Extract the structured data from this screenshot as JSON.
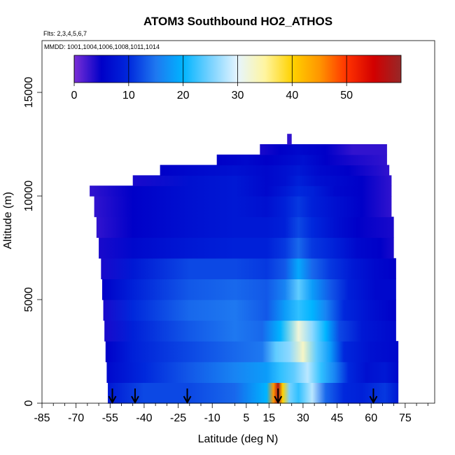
{
  "chart_data": {
    "type": "heatmap",
    "title": "ATOM3 Southbound HO2_ATHOS",
    "subtitle_flights": "Flts: 2,3,4,5,6,7",
    "subtitle_dates": "MMDD: 1001,1004,1006,1008,1011,1014",
    "xlabel": "Latitude (deg N)",
    "ylabel": "Altitude (m)",
    "xlim": [
      -85,
      88
    ],
    "ylim": [
      0,
      17500
    ],
    "x_ticks": [
      -85,
      -70,
      -55,
      -40,
      -25,
      -10,
      5,
      15,
      30,
      45,
      60,
      75
    ],
    "x_minor_ticks": [
      -80,
      -75,
      -65,
      -60,
      -50,
      -45,
      -35,
      -30,
      -20,
      -15,
      0,
      10,
      20,
      25,
      35,
      40,
      50,
      55,
      65,
      70,
      80,
      85
    ],
    "y_ticks": [
      0,
      5000,
      10000,
      15000
    ],
    "colorbar": {
      "min": 0,
      "max": 60,
      "ticks": [
        0,
        10,
        20,
        30,
        40,
        50
      ],
      "colors": [
        "#7b2fd6",
        "#0000c8",
        "#0028dc",
        "#1e78f0",
        "#00b4ff",
        "#78d2ff",
        "#e6f5ff",
        "#fff5a0",
        "#ffd200",
        "#ff9600",
        "#ff3200",
        "#d20000",
        "#962828"
      ]
    },
    "flight_boundary_latitudes": [
      -54,
      -44,
      -21,
      19,
      61
    ],
    "bands": [
      {
        "alt": [
          0,
          1000
        ],
        "lat": [
          -56,
          72
        ],
        "values": [
          [
            -56,
            8
          ],
          [
            -40,
            12
          ],
          [
            -20,
            12
          ],
          [
            0,
            14
          ],
          [
            14,
            20
          ],
          [
            17,
            45
          ],
          [
            19,
            58
          ],
          [
            21,
            40
          ],
          [
            24,
            25
          ],
          [
            28,
            22
          ],
          [
            34,
            28
          ],
          [
            40,
            14
          ],
          [
            48,
            10
          ],
          [
            56,
            9
          ],
          [
            66,
            11
          ],
          [
            72,
            8
          ]
        ]
      },
      {
        "alt": [
          1000,
          2000
        ],
        "lat": [
          -56.5,
          72
        ],
        "values": [
          [
            -56.5,
            6
          ],
          [
            -40,
            10
          ],
          [
            -20,
            13
          ],
          [
            0,
            16
          ],
          [
            14,
            18
          ],
          [
            20,
            22
          ],
          [
            26,
            24
          ],
          [
            32,
            28
          ],
          [
            38,
            22
          ],
          [
            44,
            16
          ],
          [
            50,
            10
          ],
          [
            58,
            7
          ],
          [
            66,
            8
          ],
          [
            72,
            6
          ]
        ]
      },
      {
        "alt": [
          2000,
          3000
        ],
        "lat": [
          -57,
          72
        ],
        "values": [
          [
            -57,
            5
          ],
          [
            -45,
            9
          ],
          [
            -20,
            12
          ],
          [
            0,
            14
          ],
          [
            12,
            15
          ],
          [
            18,
            24
          ],
          [
            24,
            26
          ],
          [
            30,
            33
          ],
          [
            36,
            24
          ],
          [
            42,
            18
          ],
          [
            48,
            10
          ],
          [
            60,
            7
          ],
          [
            72,
            6
          ]
        ]
      },
      {
        "alt": [
          3000,
          4000
        ],
        "lat": [
          -57.5,
          71
        ],
        "values": [
          [
            -57.5,
            4
          ],
          [
            -45,
            9
          ],
          [
            -20,
            13
          ],
          [
            0,
            15
          ],
          [
            12,
            14
          ],
          [
            20,
            20
          ],
          [
            28,
            32
          ],
          [
            34,
            26
          ],
          [
            40,
            20
          ],
          [
            46,
            12
          ],
          [
            56,
            8
          ],
          [
            71,
            6
          ]
        ]
      },
      {
        "alt": [
          4000,
          5000
        ],
        "lat": [
          -58,
          71
        ],
        "values": [
          [
            -58,
            4
          ],
          [
            -45,
            10
          ],
          [
            -20,
            14
          ],
          [
            0,
            15
          ],
          [
            14,
            13
          ],
          [
            22,
            18
          ],
          [
            28,
            22
          ],
          [
            34,
            20
          ],
          [
            40,
            16
          ],
          [
            48,
            10
          ],
          [
            60,
            7
          ],
          [
            71,
            5
          ]
        ]
      },
      {
        "alt": [
          5000,
          6000
        ],
        "lat": [
          -58.5,
          71
        ],
        "values": [
          [
            -58.5,
            5
          ],
          [
            -45,
            9
          ],
          [
            -20,
            13
          ],
          [
            0,
            14
          ],
          [
            14,
            13
          ],
          [
            22,
            16
          ],
          [
            28,
            24
          ],
          [
            34,
            18
          ],
          [
            42,
            13
          ],
          [
            50,
            9
          ],
          [
            62,
            6
          ],
          [
            71,
            6
          ]
        ]
      },
      {
        "alt": [
          6000,
          7000
        ],
        "lat": [
          -59,
          71
        ],
        "values": [
          [
            -59,
            4
          ],
          [
            -45,
            8
          ],
          [
            -20,
            12
          ],
          [
            0,
            12
          ],
          [
            14,
            11
          ],
          [
            22,
            13
          ],
          [
            28,
            19
          ],
          [
            34,
            14
          ],
          [
            42,
            11
          ],
          [
            52,
            8
          ],
          [
            62,
            6
          ],
          [
            71,
            5
          ]
        ]
      },
      {
        "alt": [
          7000,
          8000
        ],
        "lat": [
          -60,
          70
        ],
        "values": [
          [
            -60,
            4
          ],
          [
            -45,
            6
          ],
          [
            -20,
            8
          ],
          [
            0,
            9
          ],
          [
            14,
            9
          ],
          [
            22,
            11
          ],
          [
            28,
            14
          ],
          [
            34,
            11
          ],
          [
            44,
            9
          ],
          [
            54,
            6
          ],
          [
            64,
            5
          ],
          [
            70,
            4
          ]
        ]
      },
      {
        "alt": [
          8000,
          9000
        ],
        "lat": [
          -61,
          70
        ],
        "values": [
          [
            -61,
            3
          ],
          [
            -45,
            5
          ],
          [
            -20,
            7
          ],
          [
            0,
            8
          ],
          [
            14,
            8
          ],
          [
            22,
            9
          ],
          [
            28,
            12
          ],
          [
            34,
            10
          ],
          [
            44,
            7
          ],
          [
            54,
            5
          ],
          [
            70,
            4
          ]
        ]
      },
      {
        "alt": [
          9000,
          10000
        ],
        "lat": [
          -62,
          69
        ],
        "values": [
          [
            -62,
            3
          ],
          [
            -45,
            5
          ],
          [
            -20,
            7
          ],
          [
            0,
            8
          ],
          [
            14,
            7
          ],
          [
            22,
            9
          ],
          [
            28,
            11
          ],
          [
            34,
            9
          ],
          [
            44,
            7
          ],
          [
            56,
            5
          ],
          [
            69,
            3
          ]
        ]
      },
      {
        "alt": [
          10000,
          10500
        ],
        "lat": [
          -64,
          69
        ],
        "values": [
          [
            -64,
            3
          ],
          [
            -45,
            5
          ],
          [
            -20,
            7
          ],
          [
            0,
            8
          ],
          [
            14,
            6
          ],
          [
            22,
            8
          ],
          [
            28,
            10
          ],
          [
            34,
            9
          ],
          [
            44,
            6
          ],
          [
            56,
            5
          ],
          [
            69,
            3
          ]
        ]
      },
      {
        "alt": [
          10500,
          11000
        ],
        "lat": [
          -45,
          69
        ],
        "values": [
          [
            -45,
            4
          ],
          [
            -20,
            7
          ],
          [
            0,
            8
          ],
          [
            14,
            6
          ],
          [
            22,
            7
          ],
          [
            28,
            9
          ],
          [
            36,
            7
          ],
          [
            46,
            6
          ],
          [
            56,
            5
          ],
          [
            69,
            3
          ]
        ]
      },
      {
        "alt": [
          11000,
          11500
        ],
        "lat": [
          -33,
          68
        ],
        "values": [
          [
            -33,
            5
          ],
          [
            -20,
            6
          ],
          [
            0,
            7
          ],
          [
            14,
            6
          ],
          [
            22,
            7
          ],
          [
            28,
            8
          ],
          [
            38,
            6
          ],
          [
            50,
            5
          ],
          [
            68,
            3
          ]
        ]
      },
      {
        "alt": [
          11500,
          12000
        ],
        "lat": [
          -8,
          67
        ],
        "values": [
          [
            -8,
            5
          ],
          [
            5,
            6
          ],
          [
            14,
            5
          ],
          [
            22,
            6
          ],
          [
            30,
            7
          ],
          [
            40,
            5
          ],
          [
            52,
            4
          ],
          [
            67,
            3
          ]
        ]
      },
      {
        "alt": [
          12000,
          12500
        ],
        "lat": [
          11,
          67
        ],
        "values": [
          [
            11,
            4
          ],
          [
            20,
            5
          ],
          [
            28,
            6
          ],
          [
            40,
            5
          ],
          [
            52,
            3
          ],
          [
            67,
            3
          ]
        ]
      },
      {
        "alt": [
          12500,
          13000
        ],
        "lat": [
          23,
          25
        ],
        "values": [
          [
            23,
            3
          ],
          [
            25,
            3
          ]
        ]
      }
    ]
  }
}
